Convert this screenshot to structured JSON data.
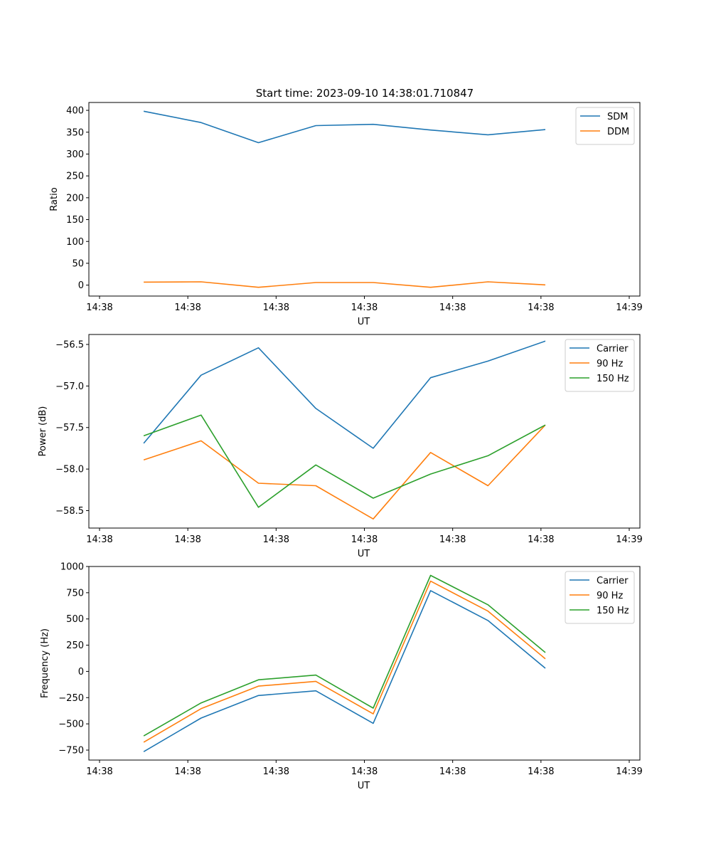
{
  "figure_title": "Start time: 2023-09-10 14:38:01.710847",
  "chart_data": [
    {
      "type": "line",
      "xlabel": "UT",
      "ylabel": "Ratio",
      "ylim": [
        -25,
        418
      ],
      "yticks": [
        0,
        50,
        100,
        150,
        200,
        250,
        300,
        350,
        400
      ],
      "ytick_labels": [
        "0",
        "50",
        "100",
        "150",
        "200",
        "250",
        "300",
        "350",
        "400"
      ],
      "xlim": [
        0,
        6
      ],
      "xticks": [
        0,
        1,
        2,
        3,
        4,
        5,
        6
      ],
      "xtick_labels": [
        "14:38",
        "14:38",
        "14:38",
        "14:38",
        "14:38",
        "14:38",
        "14:39"
      ],
      "x": [
        0.5,
        1.15,
        1.8,
        2.45,
        3.1,
        3.75,
        4.4,
        5.05
      ],
      "legend_position": "top-right",
      "series": [
        {
          "name": "SDM",
          "color": "#1f77b4",
          "values": [
            398,
            372,
            326,
            365,
            368,
            355,
            344,
            356
          ]
        },
        {
          "name": "DDM",
          "color": "#ff7f0e",
          "values": [
            7,
            7.5,
            -5,
            6,
            6,
            -5,
            7.5,
            0.5
          ]
        }
      ]
    },
    {
      "type": "line",
      "xlabel": "UT",
      "ylabel": "Power (dB)",
      "ylim": [
        -58.71,
        -56.38
      ],
      "yticks": [
        -58.5,
        -58.0,
        -57.5,
        -57.0,
        -56.5
      ],
      "ytick_labels": [
        "−58.5",
        "−58.0",
        "−57.5",
        "−57.0",
        "−56.5"
      ],
      "xlim": [
        0,
        6
      ],
      "xticks": [
        0,
        1,
        2,
        3,
        4,
        5,
        6
      ],
      "xtick_labels": [
        "14:38",
        "14:38",
        "14:38",
        "14:38",
        "14:38",
        "14:38",
        "14:39"
      ],
      "x": [
        0.5,
        1.15,
        1.8,
        2.45,
        3.1,
        3.75,
        4.4,
        5.05
      ],
      "legend_position": "top-right",
      "series": [
        {
          "name": "Carrier",
          "color": "#1f77b4",
          "values": [
            -57.69,
            -56.87,
            -56.54,
            -57.27,
            -57.75,
            -56.9,
            -56.7,
            -56.46
          ]
        },
        {
          "name": "90 Hz",
          "color": "#ff7f0e",
          "values": [
            -57.89,
            -57.66,
            -58.17,
            -58.2,
            -58.6,
            -57.8,
            -58.2,
            -57.47
          ]
        },
        {
          "name": "150 Hz",
          "color": "#2ca02c",
          "values": [
            -57.6,
            -57.35,
            -58.46,
            -57.95,
            -58.35,
            -58.06,
            -57.84,
            -57.47
          ]
        }
      ]
    },
    {
      "type": "line",
      "xlabel": "UT",
      "ylabel": "Frequency (Hz)",
      "ylim": [
        -845,
        1000
      ],
      "yticks": [
        -750,
        -500,
        -250,
        0,
        250,
        500,
        750,
        1000
      ],
      "ytick_labels": [
        "−750",
        "−500",
        "−250",
        "0",
        "250",
        "500",
        "750",
        "1000"
      ],
      "xlim": [
        0,
        6
      ],
      "xticks": [
        0,
        1,
        2,
        3,
        4,
        5,
        6
      ],
      "xtick_labels": [
        "14:38",
        "14:38",
        "14:38",
        "14:38",
        "14:38",
        "14:38",
        "14:39"
      ],
      "x": [
        0.5,
        1.15,
        1.8,
        2.45,
        3.1,
        3.75,
        4.4,
        5.05
      ],
      "legend_position": "top-right",
      "series": [
        {
          "name": "Carrier",
          "color": "#1f77b4",
          "values": [
            -765,
            -445,
            -230,
            -185,
            -495,
            770,
            485,
            30
          ]
        },
        {
          "name": "90 Hz",
          "color": "#ff7f0e",
          "values": [
            -675,
            -355,
            -140,
            -95,
            -405,
            860,
            575,
            120
          ]
        },
        {
          "name": "150 Hz",
          "color": "#2ca02c",
          "values": [
            -615,
            -300,
            -80,
            -35,
            -350,
            915,
            635,
            180
          ]
        }
      ]
    }
  ]
}
